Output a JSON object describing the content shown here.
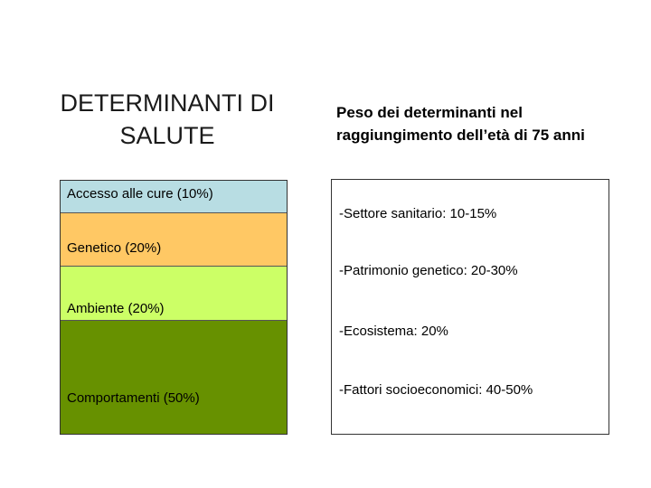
{
  "title_lines": [
    "DETERMINANTI DI",
    "SALUTE"
  ],
  "subtitle_lines": [
    "Peso dei determinanti nel",
    "raggiungimento dell’età di 75 anni"
  ],
  "determinants": [
    {
      "label": "Accesso alle cure (10%)",
      "color": "#b8dde3"
    },
    {
      "label": "Genetico (20%)",
      "color": "#ffc864"
    },
    {
      "label": "Ambiente (20%)",
      "color": "#ccff66"
    },
    {
      "label": "Comportamenti (50%)",
      "color": "#679100"
    }
  ],
  "factors": [
    "-Settore sanitario: 10-15%",
    "-Patrimonio genetico: 20-30%",
    "-Ecosistema: 20%",
    "-Fattori socioeconomici: 40-50%"
  ]
}
